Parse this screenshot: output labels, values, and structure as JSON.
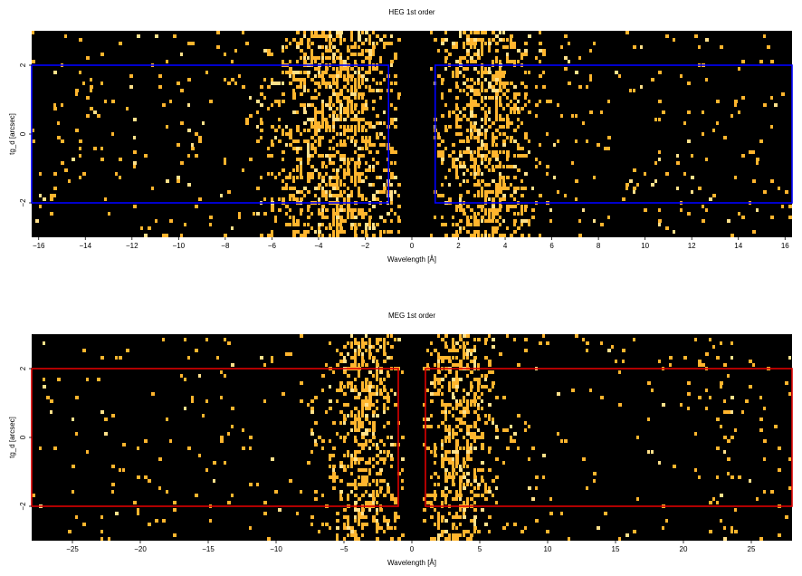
{
  "chart_data": [
    {
      "type": "heatmap",
      "title": "HEG 1st order",
      "xlabel": "Wavelength [Å]",
      "ylabel": "tg_d [arcsec]",
      "xlim": [
        -16.3,
        16.3
      ],
      "ylim": [
        -3.0,
        3.0
      ],
      "xticks": [
        -16,
        -14,
        -12,
        -10,
        -8,
        -6,
        -4,
        -2,
        0,
        2,
        4,
        6,
        8,
        10,
        12,
        14,
        16
      ],
      "xtick_labels": [
        "−16",
        "−14",
        "−12",
        "−10",
        "−8",
        "−6",
        "−4",
        "−2",
        "0",
        "2",
        "4",
        "6",
        "8",
        "10",
        "12",
        "14",
        "16"
      ],
      "yticks": [
        -2,
        0,
        2
      ],
      "ytick_labels": [
        "−2",
        "0",
        "2"
      ],
      "background": "#000000",
      "event_color": "#ffb52e",
      "event_density": {
        "peaks": [
          {
            "center": -3.2,
            "sigma": 1.6,
            "weight": 1.0
          },
          {
            "center": 3.2,
            "sigma": 1.2,
            "weight": 0.95
          }
        ],
        "gap": [
          -0.5,
          0.8
        ],
        "background_rate": 0.04
      },
      "regions": [
        {
          "color": "#0000ff",
          "x": [
            -16.3,
            -1.0
          ],
          "y": [
            -2.0,
            2.0
          ]
        },
        {
          "color": "#0000ff",
          "x": [
            1.0,
            16.3
          ],
          "y": [
            -2.0,
            2.0
          ]
        }
      ]
    },
    {
      "type": "heatmap",
      "title": "MEG 1st order",
      "xlabel": "Wavelength [Å]",
      "ylabel": "tg_d [arcsec]",
      "xlim": [
        -28.0,
        28.0
      ],
      "ylim": [
        -3.0,
        3.0
      ],
      "xticks": [
        -25,
        -20,
        -15,
        -10,
        -5,
        0,
        5,
        10,
        15,
        20,
        25
      ],
      "xtick_labels": [
        "−25",
        "−20",
        "−15",
        "−10",
        "−5",
        "0",
        "5",
        "10",
        "15",
        "20",
        "25"
      ],
      "yticks": [
        -2,
        0,
        2
      ],
      "ytick_labels": [
        "−2",
        "0",
        "2"
      ],
      "background": "#000000",
      "event_color": "#ffb52e",
      "event_density": {
        "peaks": [
          {
            "center": -3.5,
            "sigma": 1.4,
            "weight": 1.0
          },
          {
            "center": 3.5,
            "sigma": 1.4,
            "weight": 0.95
          },
          {
            "center": 23.0,
            "sigma": 1.2,
            "weight": 0.12
          }
        ],
        "gap": [
          -0.5,
          0.8
        ],
        "background_rate": 0.03
      },
      "regions": [
        {
          "color": "#dd0000",
          "x": [
            -28.0,
            -1.0
          ],
          "y": [
            -2.0,
            2.0
          ]
        },
        {
          "color": "#dd0000",
          "x": [
            1.0,
            28.0
          ],
          "y": [
            -2.0,
            2.0
          ]
        }
      ]
    }
  ]
}
